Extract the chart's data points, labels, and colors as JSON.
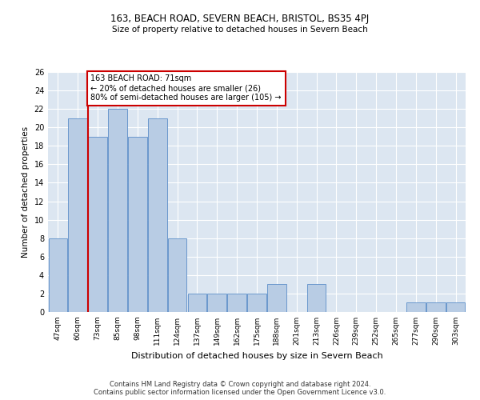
{
  "title1": "163, BEACH ROAD, SEVERN BEACH, BRISTOL, BS35 4PJ",
  "title2": "Size of property relative to detached houses in Severn Beach",
  "xlabel": "Distribution of detached houses by size in Severn Beach",
  "ylabel": "Number of detached properties",
  "footer1": "Contains HM Land Registry data © Crown copyright and database right 2024.",
  "footer2": "Contains public sector information licensed under the Open Government Licence v3.0.",
  "annotation_line1": "163 BEACH ROAD: 71sqm",
  "annotation_line2": "← 20% of detached houses are smaller (26)",
  "annotation_line3": "80% of semi-detached houses are larger (105) →",
  "categories": [
    "47sqm",
    "60sqm",
    "73sqm",
    "85sqm",
    "98sqm",
    "111sqm",
    "124sqm",
    "137sqm",
    "149sqm",
    "162sqm",
    "175sqm",
    "188sqm",
    "201sqm",
    "213sqm",
    "226sqm",
    "239sqm",
    "252sqm",
    "265sqm",
    "277sqm",
    "290sqm",
    "303sqm"
  ],
  "values": [
    8,
    21,
    19,
    22,
    19,
    21,
    8,
    2,
    2,
    2,
    2,
    3,
    0,
    3,
    0,
    0,
    0,
    0,
    1,
    1,
    1
  ],
  "bar_color": "#b8cce4",
  "bar_edge_color": "#5b8dc8",
  "vline_x_index": 1.5,
  "vline_color": "#cc0000",
  "annotation_box_color": "#cc0000",
  "ylim_max": 26,
  "ytick_step": 2,
  "bg_color": "#dce6f1"
}
